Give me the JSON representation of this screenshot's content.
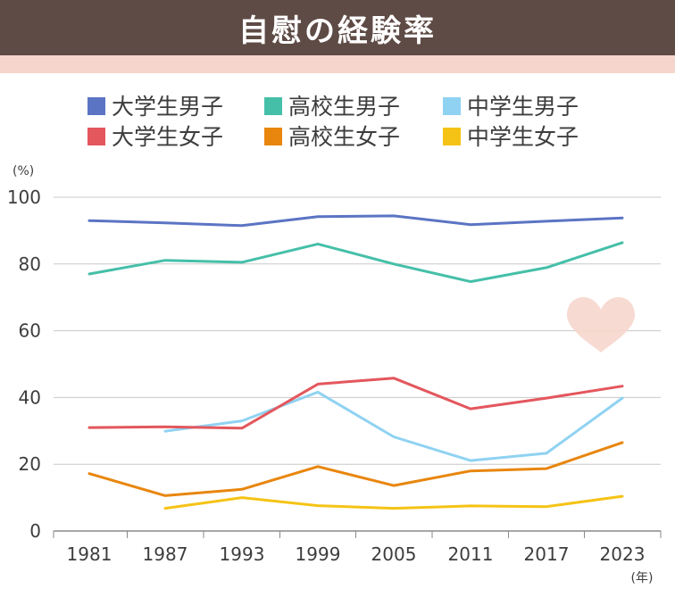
{
  "title": "自慰の経験率",
  "chart_data": {
    "type": "line",
    "title": "自慰の経験率",
    "y_unit": "(%)",
    "x_unit": "(年)",
    "ylim": [
      0,
      100
    ],
    "yticks": [
      "0",
      "20",
      "40",
      "60",
      "80",
      "100"
    ],
    "categories": [
      "1981",
      "1987",
      "1993",
      "1999",
      "2005",
      "2011",
      "2017",
      "2023"
    ],
    "grid": true,
    "legend_position": "top",
    "series": [
      {
        "name": "大学生男子",
        "color": "#5b74c4",
        "values": [
          93,
          92.3,
          91.5,
          94.2,
          94.4,
          91.8,
          92.8,
          93.8
        ]
      },
      {
        "name": "高校生男子",
        "color": "#45bfa8",
        "values": [
          77,
          81.1,
          80.5,
          86,
          80,
          74.7,
          78.9,
          86.4
        ]
      },
      {
        "name": "中学生男子",
        "color": "#8fd2f2",
        "values": [
          null,
          29.9,
          33,
          41.6,
          28.2,
          21.1,
          23.3,
          39.8
        ]
      },
      {
        "name": "大学生女子",
        "color": "#e3575d",
        "values": [
          31,
          31.2,
          30.8,
          44,
          45.8,
          36.6,
          39.8,
          43.4
        ]
      },
      {
        "name": "高校生女子",
        "color": "#e8860e",
        "values": [
          17.2,
          10.6,
          12.5,
          19.3,
          13.6,
          18,
          18.7,
          26.5
        ]
      },
      {
        "name": "中学生女子",
        "color": "#f5c315",
        "values": [
          null,
          6.8,
          10,
          7.6,
          6.8,
          7.5,
          7.3,
          10.4
        ]
      }
    ]
  }
}
